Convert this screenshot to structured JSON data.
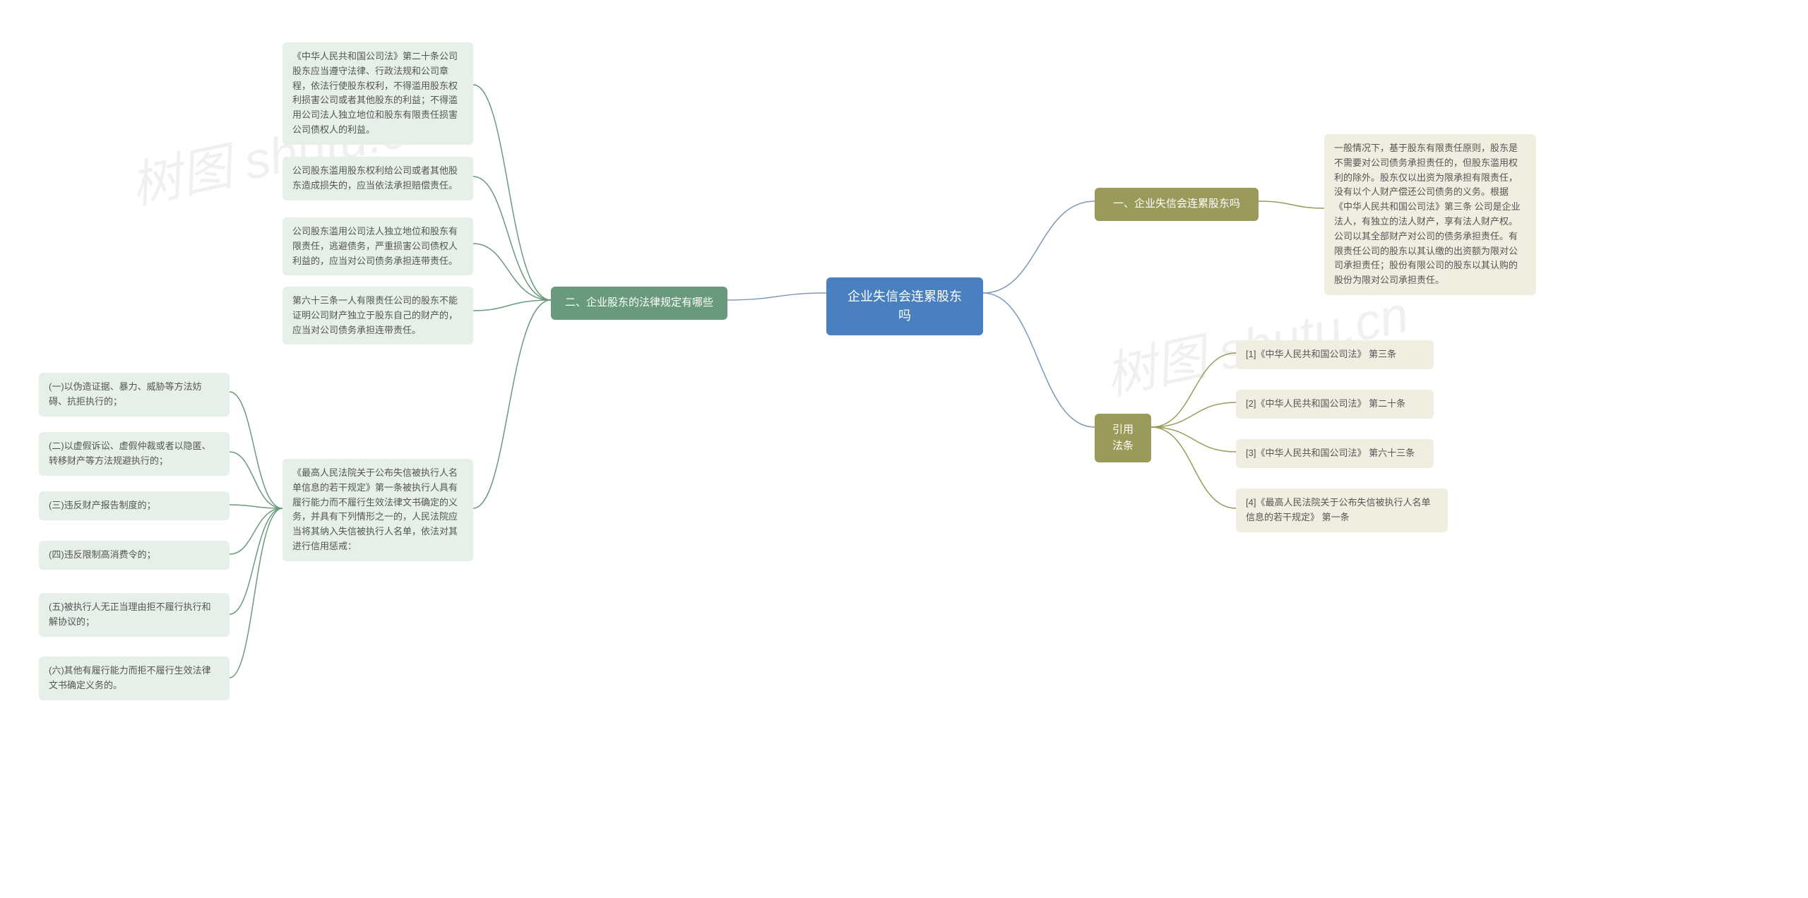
{
  "type": "tree",
  "background_color": "#ffffff",
  "watermark_text": "树图 shutu.cn",
  "colors": {
    "root_bg": "#4a80bf",
    "root_text": "#ffffff",
    "branch_green_bg": "#6a9a7d",
    "branch_olive_bg": "#9a9a5a",
    "leaf_green_bg": "#e6efe8",
    "leaf_olive_bg": "#efeee0",
    "leaf_text": "#555555",
    "connector_green": "#6a9a7d",
    "connector_olive": "#9a9a5a",
    "connector_root": "#7d98b8"
  },
  "root": {
    "label": "企业失信会连累股东吗"
  },
  "right": {
    "section1": {
      "label": "一、企业失信会连累股东吗",
      "detail": "一般情况下，基于股东有限责任原则，股东是不需要对公司债务承担责任的，但股东滥用权利的除外。股东仅以出资为限承担有限责任，没有以个人财产偿还公司债务的义务。根据《中华人民共和国公司法》第三条 公司是企业法人，有独立的法人财产，享有法人财产权。公司以其全部财产对公司的债务承担责任。有限责任公司的股东以其认缴的出资额为限对公司承担责任；股份有限公司的股东以其认购的股份为限对公司承担责任。"
    },
    "section3": {
      "label": "引用法条",
      "items": [
        "[1]《中华人民共和国公司法》 第三条",
        "[2]《中华人民共和国公司法》 第二十条",
        "[3]《中华人民共和国公司法》 第六十三条",
        "[4]《最高人民法院关于公布失信被执行人名单信息的若干规定》 第一条"
      ]
    }
  },
  "left": {
    "section2": {
      "label": "二、企业股东的法律规定有哪些",
      "items": [
        "《中华人民共和国公司法》第二十条公司股东应当遵守法律、行政法规和公司章程，依法行使股东权利，不得滥用股东权利损害公司或者其他股东的利益；不得滥用公司法人独立地位和股东有限责任损害公司债权人的利益。",
        "公司股东滥用股东权利给公司或者其他股东造成损失的，应当依法承担赔偿责任。",
        "公司股东滥用公司法人独立地位和股东有限责任，逃避债务，严重损害公司债权人利益的，应当对公司债务承担连带责任。",
        "第六十三条一人有限责任公司的股东不能证明公司财产独立于股东自己的财产的，应当对公司债务承担连带责任。"
      ],
      "sub": {
        "label": "《最高人民法院关于公布失信被执行人名单信息的若干规定》第一条被执行人具有履行能力而不履行生效法律文书确定的义务，并具有下列情形之一的，人民法院应当将其纳入失信被执行人名单，依法对其进行信用惩戒：",
        "items": [
          "(一)以伪造证据、暴力、威胁等方法妨碍、抗拒执行的；",
          "(二)以虚假诉讼、虚假仲裁或者以隐匿、转移财产等方法规避执行的；",
          "(三)违反财产报告制度的；",
          "(四)违反限制高消费令的；",
          "(五)被执行人无正当理由拒不履行执行和解协议的；",
          "(六)其他有履行能力而拒不履行生效法律文书确定义务的。"
        ]
      }
    }
  }
}
